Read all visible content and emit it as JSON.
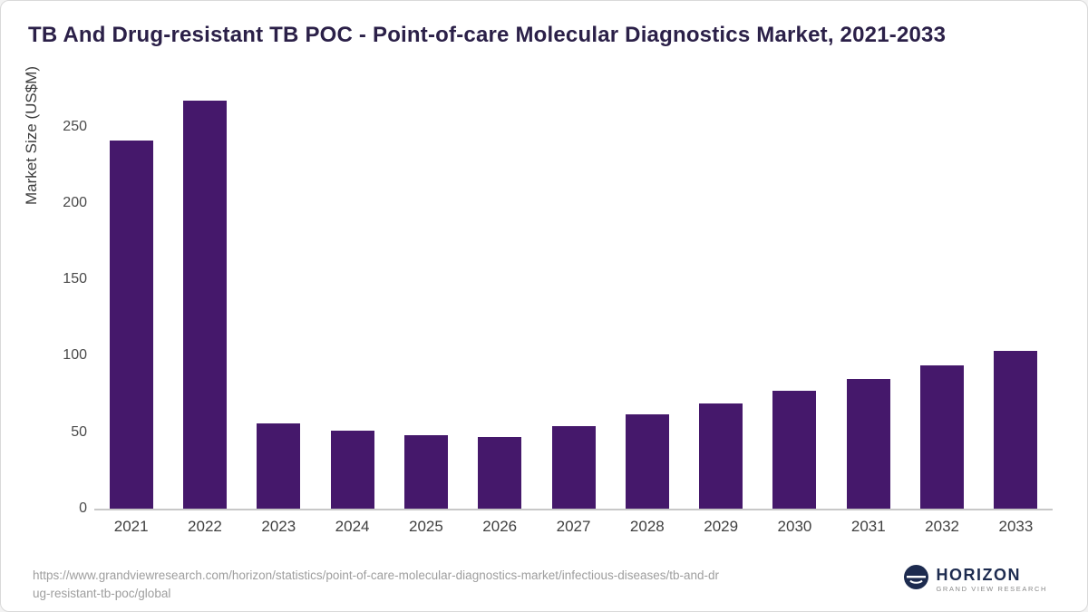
{
  "title": "TB And Drug-resistant TB POC - Point-of-care Molecular Diagnostics Market, 2021-2033",
  "chart_data": {
    "type": "bar",
    "categories": [
      "2021",
      "2022",
      "2023",
      "2024",
      "2025",
      "2026",
      "2027",
      "2028",
      "2029",
      "2030",
      "2031",
      "2032",
      "2033"
    ],
    "values": [
      241,
      267,
      56,
      51,
      48,
      47,
      54,
      62,
      69,
      77,
      85,
      94,
      103
    ],
    "title": "TB And Drug-resistant TB POC - Point-of-care Molecular Diagnostics Market, 2021-2033",
    "xlabel": "",
    "ylabel": "Market Size (US$M)",
    "ylim": [
      0,
      270
    ],
    "yticks": [
      0,
      50,
      100,
      150,
      200,
      250
    ],
    "grid": false,
    "legend": false,
    "bar_color": "#45186B"
  },
  "colors": {
    "title_text": "#2B2048",
    "bar": "#45186B",
    "axis_line": "#C8C8C8",
    "logo_navy": "#1D2B4F"
  },
  "footer": {
    "source_line1": "https://www.grandviewresearch.com/horizon/statistics/point-of-care-molecular-diagnostics-market/infectious-diseases/tb-and-dr",
    "source_line2": "ug-resistant-tb-poc/global",
    "logo": {
      "name": "HORIZON",
      "subtext": "GRAND VIEW RESEARCH"
    }
  }
}
